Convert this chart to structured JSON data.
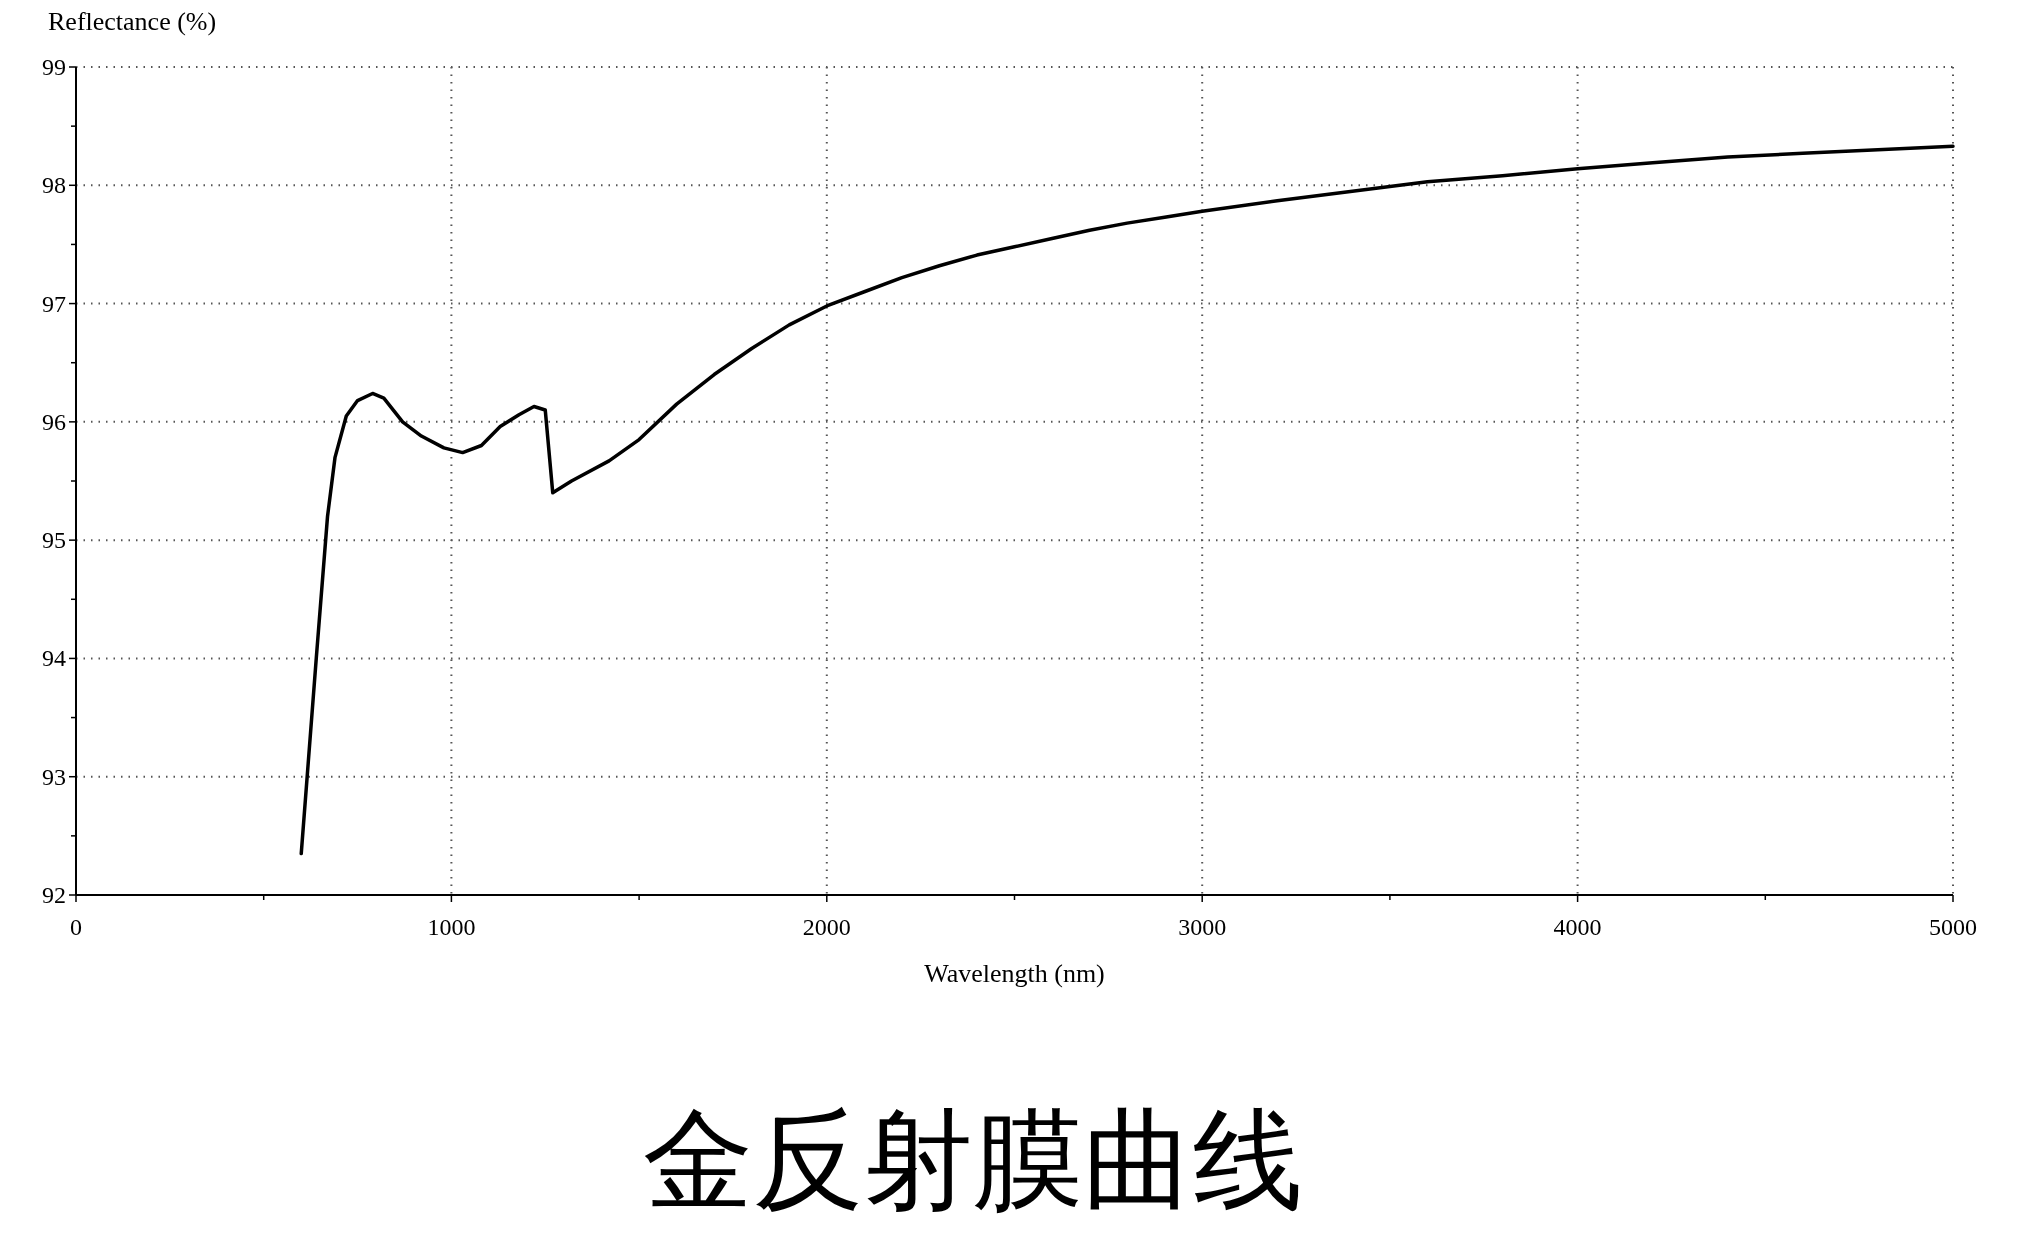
{
  "chart_data": {
    "type": "line",
    "title": "金反射膜曲线",
    "xlabel": "Wavelength (nm)",
    "ylabel": "Reflectance (%)",
    "xlim": [
      0,
      5000
    ],
    "ylim": [
      92,
      99
    ],
    "xticks": [
      0,
      {
        "value": 500,
        "label": null
      },
      1000,
      {
        "value": 1500,
        "label": null
      },
      2000,
      {
        "value": 2500,
        "label": null
      },
      3000,
      {
        "value": 3500,
        "label": null
      },
      4000,
      {
        "value": 4500,
        "label": null
      },
      5000
    ],
    "yticks": [
      92,
      {
        "value": 92.5,
        "label": null
      },
      93,
      {
        "value": 93.5,
        "label": null
      },
      94,
      {
        "value": 94.5,
        "label": null
      },
      95,
      {
        "value": 95.5,
        "label": null
      },
      96,
      {
        "value": 96.5,
        "label": null
      },
      97,
      {
        "value": 97.5,
        "label": null
      },
      98,
      {
        "value": 98.5,
        "label": null
      },
      99
    ],
    "grid": true,
    "line_style": "solid",
    "marker": "none",
    "series": [
      {
        "color": "#000000",
        "x": [
          600,
          640,
          670,
          690,
          720,
          750,
          790,
          820,
          870,
          920,
          980,
          1030,
          1080,
          1130,
          1180,
          1220,
          1250,
          1270,
          1320,
          1420,
          1500,
          1600,
          1700,
          1800,
          1900,
          2000,
          2100,
          2200,
          2300,
          2400,
          2500,
          2600,
          2700,
          2800,
          2900,
          3000,
          3200,
          3400,
          3600,
          3800,
          4000,
          4200,
          4400,
          4600,
          4800,
          5000
        ],
        "values": [
          92.35,
          94.0,
          95.2,
          95.7,
          96.05,
          96.18,
          96.24,
          96.2,
          96.0,
          95.88,
          95.78,
          95.74,
          95.8,
          95.96,
          96.06,
          96.13,
          96.1,
          95.4,
          95.5,
          95.67,
          95.85,
          96.15,
          96.4,
          96.62,
          96.82,
          96.98,
          97.1,
          97.22,
          97.32,
          97.41,
          97.48,
          97.55,
          97.62,
          97.68,
          97.73,
          97.78,
          97.87,
          97.95,
          98.03,
          98.08,
          98.14,
          98.19,
          98.24,
          98.27,
          98.3,
          98.33
        ]
      }
    ]
  }
}
